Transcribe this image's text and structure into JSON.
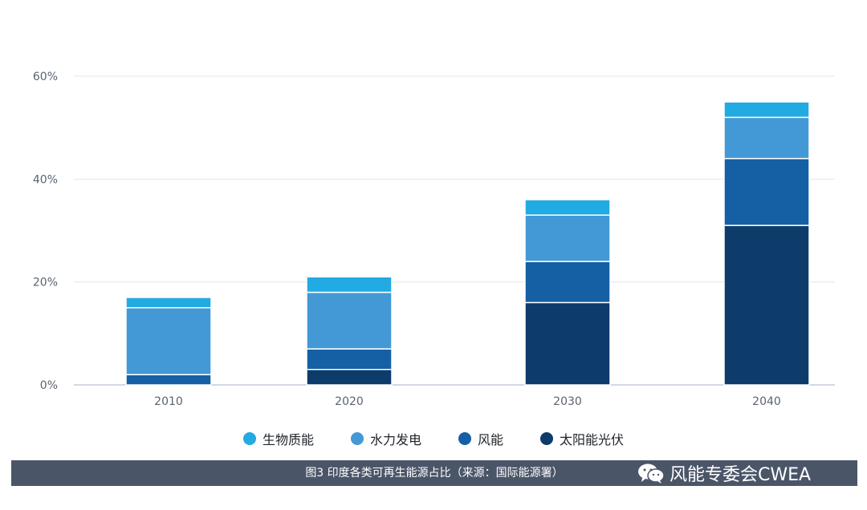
{
  "chart_data": {
    "type": "bar",
    "stacked": true,
    "categories": [
      "2010",
      "2020",
      "2030",
      "2040"
    ],
    "series": [
      {
        "name": "太阳能光伏",
        "values": [
          0,
          3,
          16,
          31
        ],
        "color": "#0d3c6b"
      },
      {
        "name": "风能",
        "values": [
          2,
          4,
          8,
          13
        ],
        "color": "#1560a5"
      },
      {
        "name": "水力发电",
        "values": [
          13,
          11,
          9,
          8
        ],
        "color": "#4399d6"
      },
      {
        "name": "生物质能",
        "values": [
          2,
          3,
          3,
          3
        ],
        "color": "#22aae3"
      }
    ],
    "yticks": [
      "0%",
      "20%",
      "40%",
      "60%"
    ],
    "ylim": [
      0,
      60
    ],
    "grid": true,
    "legend_position": "bottom"
  },
  "legend": [
    {
      "label": "生物质能",
      "color": "#22aae3"
    },
    {
      "label": "水力发电",
      "color": "#4399d6"
    },
    {
      "label": "风能",
      "color": "#1560a5"
    },
    {
      "label": "太阳能光伏",
      "color": "#0d3c6b"
    }
  ],
  "caption": "图3 印度各类可再生能源占比（来源：国际能源署）",
  "watermark": {
    "text": "风能专委会CWEA",
    "icon": "wechat-icon"
  }
}
